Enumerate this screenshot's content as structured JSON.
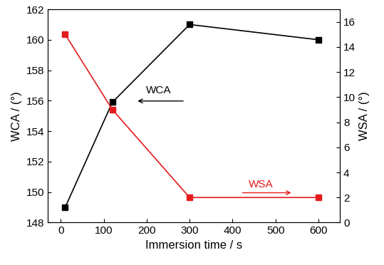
{
  "chart_data": {
    "type": "line",
    "x_label": "Immersion time / s",
    "y_label": "WCA / (°)",
    "y2_label": "WSA / (°)",
    "x": [
      10,
      120,
      300,
      600
    ],
    "series": [
      {
        "name": "WCA",
        "color": "#000000",
        "marker": "square",
        "line_style": "solid",
        "axis": "y",
        "values": [
          149.0,
          155.9,
          161.0,
          160.0
        ]
      },
      {
        "name": "WSA",
        "color": "#e41a1c",
        "marker": "square",
        "line_style": "solid",
        "axis": "y2",
        "values": [
          15,
          9,
          2,
          2
        ]
      }
    ],
    "xlim": [
      -30,
      650
    ],
    "xticks": [
      0,
      100,
      200,
      300,
      400,
      500,
      600
    ],
    "ylim": [
      148,
      162
    ],
    "yticks": [
      148,
      150,
      152,
      154,
      156,
      158,
      160,
      162
    ],
    "y2lim": [
      0,
      17
    ],
    "y2ticks": [
      0,
      2,
      4,
      6,
      8,
      10,
      12,
      14,
      16
    ],
    "grid": false
  }
}
